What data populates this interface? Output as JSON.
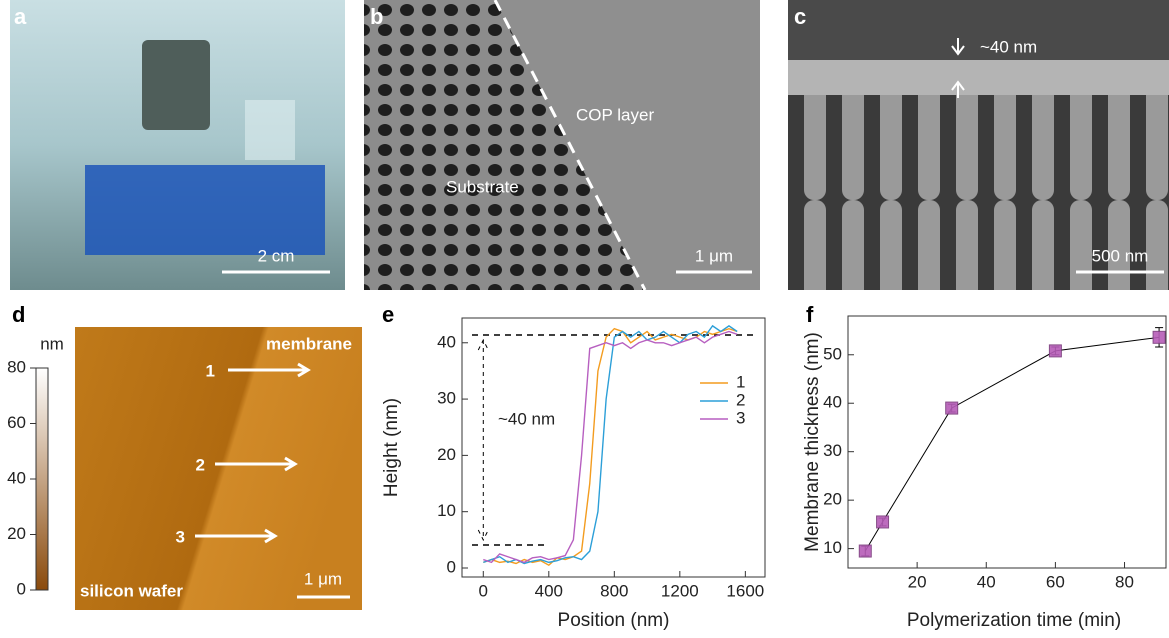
{
  "panels": {
    "a": {
      "label": "a",
      "scale_bar": "2 cm"
    },
    "b": {
      "label": "b",
      "region_1": "COP layer",
      "region_2": "Substrate",
      "scale_bar": "1 μm"
    },
    "c": {
      "label": "c",
      "thickness": "~40 nm",
      "scale_bar": "500 nm"
    },
    "d": {
      "label": "d",
      "colorbar": {
        "unit": "nm",
        "ticks": [
          0,
          20,
          40,
          60,
          80
        ]
      },
      "top_label": "membrane",
      "bottom_label": "silicon wafer",
      "arrows": [
        "1",
        "2",
        "3"
      ],
      "scale_bar": "1 μm"
    }
  },
  "chart_data": [
    {
      "type": "line",
      "panel_label": "e",
      "xlabel": "Position (nm)",
      "ylabel": "Height (nm)",
      "annotation": "~40 nm",
      "x": [
        0,
        50,
        100,
        150,
        200,
        250,
        300,
        350,
        400,
        450,
        500,
        550,
        600,
        650,
        700,
        750,
        800,
        850,
        900,
        950,
        1000,
        1050,
        1100,
        1150,
        1200,
        1250,
        1300,
        1350,
        1400,
        1450,
        1500,
        1550
      ],
      "series": [
        {
          "name": "1",
          "color": "#f39c1f",
          "values": [
            1,
            1.5,
            1,
            1.2,
            0.8,
            1.5,
            1,
            1.3,
            0.5,
            1.8,
            1.5,
            2,
            3,
            15,
            35,
            41,
            42.5,
            42,
            40,
            41,
            42,
            40.5,
            41,
            41.5,
            41,
            40.5,
            41,
            42,
            41.5,
            42,
            42.5,
            42
          ]
        },
        {
          "name": "2",
          "color": "#2c9fd8",
          "values": [
            1,
            1.5,
            2,
            1,
            1.5,
            0.8,
            1.2,
            1.5,
            1,
            1.3,
            1.8,
            2,
            1.5,
            3,
            10,
            30,
            41,
            42,
            41,
            42,
            40.5,
            41,
            42,
            41,
            40,
            41.5,
            42,
            41,
            43,
            42,
            43,
            42
          ]
        },
        {
          "name": "3",
          "color": "#b75fc0",
          "values": [
            1.5,
            1,
            2.5,
            2,
            1.5,
            1,
            1.8,
            2,
            1.5,
            1.8,
            2.2,
            5,
            20,
            39,
            39.5,
            40,
            39.5,
            40,
            39,
            40,
            40.5,
            40,
            40,
            39.5,
            40,
            40.5,
            41,
            40,
            41,
            41.5,
            42,
            41.5
          ]
        }
      ],
      "xlim": [
        -130,
        1720
      ],
      "ylim": [
        -1.6,
        44.4
      ],
      "xticks": [
        0,
        400,
        800,
        1200,
        1600
      ],
      "yticks": [
        0,
        10,
        20,
        30,
        40
      ]
    },
    {
      "type": "scatter",
      "panel_label": "f",
      "xlabel": "Polymerization time (min)",
      "ylabel": "Membrane thickness (nm)",
      "x": [
        5,
        10,
        30,
        60,
        90
      ],
      "values": [
        9.5,
        15.5,
        39,
        50.8,
        53.6
      ],
      "errors": [
        1,
        0.8,
        0.8,
        0.8,
        2
      ],
      "color": "#b65db8",
      "xlim": [
        0,
        92
      ],
      "ylim": [
        6,
        58
      ],
      "xticks": [
        20,
        40,
        60,
        80
      ],
      "yticks": [
        10,
        20,
        30,
        40,
        50
      ]
    }
  ]
}
